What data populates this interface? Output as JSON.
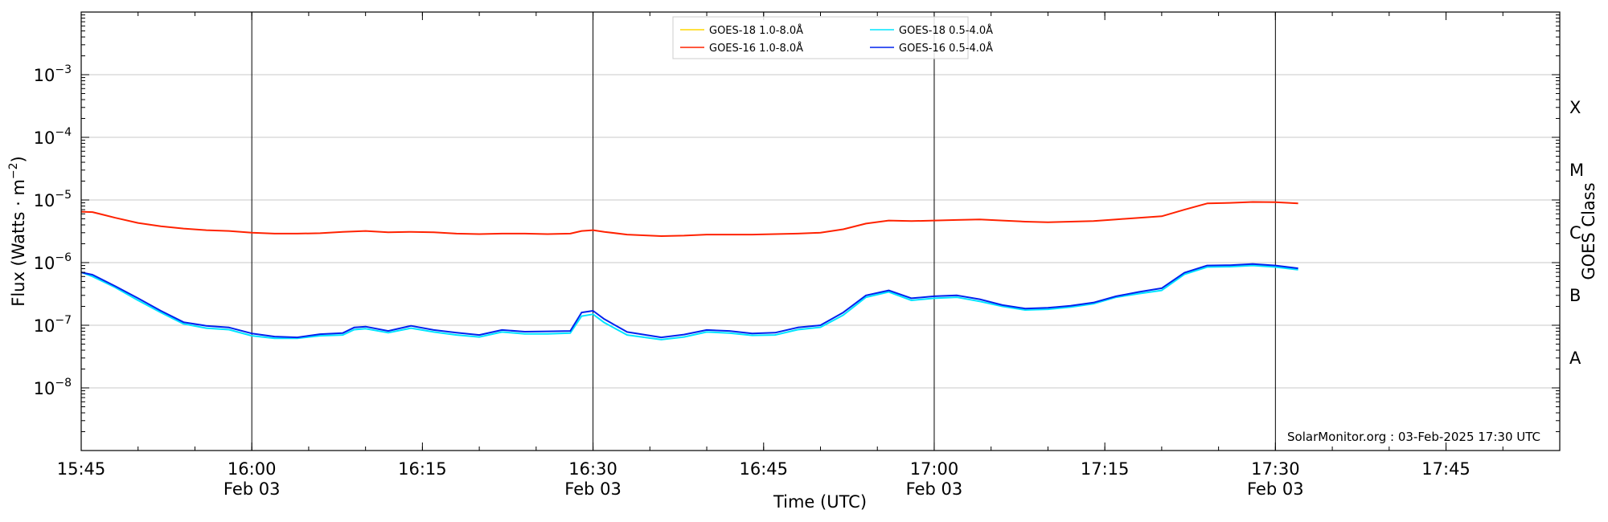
{
  "chart_data": {
    "type": "line",
    "xlabel": "Time (UTC)",
    "ylabel": "Flux (Watts · m⁻²)",
    "right_label": "GOES Class",
    "credit": "SolarMonitor.org : 03-Feb-2025 17:30 UTC",
    "x_range": [
      "15:45",
      "17:55"
    ],
    "y_scale": "log",
    "ylim": [
      1e-09,
      0.01
    ],
    "grid": "y",
    "legend_position": "top-center",
    "x_ticks": [
      {
        "t": "15:45",
        "label": "15:45",
        "date": ""
      },
      {
        "t": "16:00",
        "label": "16:00",
        "date": "Feb 03"
      },
      {
        "t": "16:15",
        "label": "16:15",
        "date": ""
      },
      {
        "t": "16:30",
        "label": "16:30",
        "date": "Feb 03"
      },
      {
        "t": "16:45",
        "label": "16:45",
        "date": ""
      },
      {
        "t": "17:00",
        "label": "17:00",
        "date": "Feb 03"
      },
      {
        "t": "17:15",
        "label": "17:15",
        "date": ""
      },
      {
        "t": "17:30",
        "label": "17:30",
        "date": "Feb 03"
      },
      {
        "t": "17:45",
        "label": "17:45",
        "date": ""
      }
    ],
    "vertical_lines": [
      "16:00",
      "16:30",
      "17:00",
      "17:30"
    ],
    "y_ticks": [
      {
        "value": 1e-08,
        "mant": "10",
        "exp": "−8"
      },
      {
        "value": 1e-07,
        "mant": "10",
        "exp": "−7"
      },
      {
        "value": 1e-06,
        "mant": "10",
        "exp": "−6"
      },
      {
        "value": 1e-05,
        "mant": "10",
        "exp": "−5"
      },
      {
        "value": 0.0001,
        "mant": "10",
        "exp": "−4"
      },
      {
        "value": 0.001,
        "mant": "10",
        "exp": "−3"
      }
    ],
    "goes_classes": [
      {
        "label": "A",
        "value": 3e-08
      },
      {
        "label": "B",
        "value": 3e-07
      },
      {
        "label": "C",
        "value": 3e-06
      },
      {
        "label": "M",
        "value": 3e-05
      },
      {
        "label": "X",
        "value": 0.0003
      }
    ],
    "series": [
      {
        "name": "GOES-18 1.0-8.0Å",
        "color": "#ffd700",
        "draw": false,
        "points": []
      },
      {
        "name": "GOES-18 0.5-4.0Å",
        "color": "#00e5ff",
        "draw": true,
        "points": [
          [
            "15:45",
            7e-07
          ],
          [
            "15:46",
            6e-07
          ],
          [
            "15:48",
            4e-07
          ],
          [
            "15:50",
            2.5e-07
          ],
          [
            "15:52",
            1.6e-07
          ],
          [
            "15:54",
            1.05e-07
          ],
          [
            "15:56",
            9e-08
          ],
          [
            "15:58",
            8.5e-08
          ],
          [
            "16:00",
            6.8e-08
          ],
          [
            "16:02",
            6.2e-08
          ],
          [
            "16:04",
            6.2e-08
          ],
          [
            "16:06",
            6.8e-08
          ],
          [
            "16:08",
            7e-08
          ],
          [
            "16:09",
            8.5e-08
          ],
          [
            "16:10",
            8.8e-08
          ],
          [
            "16:12",
            7.6e-08
          ],
          [
            "16:14",
            9e-08
          ],
          [
            "16:16",
            7.8e-08
          ],
          [
            "16:18",
            7e-08
          ],
          [
            "16:20",
            6.5e-08
          ],
          [
            "16:22",
            7.8e-08
          ],
          [
            "16:24",
            7.3e-08
          ],
          [
            "16:26",
            7.3e-08
          ],
          [
            "16:28",
            7.5e-08
          ],
          [
            "16:29",
            1.4e-07
          ],
          [
            "16:30",
            1.5e-07
          ],
          [
            "16:31",
            1.1e-07
          ],
          [
            "16:33",
            7e-08
          ],
          [
            "16:36",
            5.9e-08
          ],
          [
            "16:38",
            6.5e-08
          ],
          [
            "16:40",
            7.8e-08
          ],
          [
            "16:42",
            7.5e-08
          ],
          [
            "16:44",
            6.9e-08
          ],
          [
            "16:46",
            7e-08
          ],
          [
            "16:48",
            8.5e-08
          ],
          [
            "16:50",
            9.3e-08
          ],
          [
            "16:52",
            1.45e-07
          ],
          [
            "16:54",
            2.8e-07
          ],
          [
            "16:56",
            3.4e-07
          ],
          [
            "16:58",
            2.5e-07
          ],
          [
            "17:00",
            2.7e-07
          ],
          [
            "17:02",
            2.8e-07
          ],
          [
            "17:04",
            2.4e-07
          ],
          [
            "17:06",
            2e-07
          ],
          [
            "17:08",
            1.75e-07
          ],
          [
            "17:10",
            1.8e-07
          ],
          [
            "17:12",
            1.95e-07
          ],
          [
            "17:14",
            2.2e-07
          ],
          [
            "17:16",
            2.8e-07
          ],
          [
            "17:18",
            3.2e-07
          ],
          [
            "17:20",
            3.6e-07
          ],
          [
            "17:22",
            6.5e-07
          ],
          [
            "17:24",
            8.5e-07
          ],
          [
            "17:26",
            8.6e-07
          ],
          [
            "17:28",
            9e-07
          ],
          [
            "17:30",
            8.5e-07
          ],
          [
            "17:32",
            7.7e-07
          ]
        ]
      },
      {
        "name": "GOES-16 1.0-8.0Å",
        "color": "#ff2200",
        "draw": true,
        "points": [
          [
            "15:45",
            6.5e-06
          ],
          [
            "15:46",
            6.4e-06
          ],
          [
            "15:48",
            5.2e-06
          ],
          [
            "15:50",
            4.3e-06
          ],
          [
            "15:52",
            3.8e-06
          ],
          [
            "15:54",
            3.5e-06
          ],
          [
            "15:56",
            3.3e-06
          ],
          [
            "15:58",
            3.2e-06
          ],
          [
            "16:00",
            3e-06
          ],
          [
            "16:02",
            2.9e-06
          ],
          [
            "16:04",
            2.9e-06
          ],
          [
            "16:06",
            2.95e-06
          ],
          [
            "16:08",
            3.1e-06
          ],
          [
            "16:10",
            3.2e-06
          ],
          [
            "16:12",
            3.05e-06
          ],
          [
            "16:14",
            3.1e-06
          ],
          [
            "16:16",
            3.05e-06
          ],
          [
            "16:18",
            2.9e-06
          ],
          [
            "16:20",
            2.85e-06
          ],
          [
            "16:22",
            2.9e-06
          ],
          [
            "16:24",
            2.9e-06
          ],
          [
            "16:26",
            2.85e-06
          ],
          [
            "16:28",
            2.9e-06
          ],
          [
            "16:29",
            3.2e-06
          ],
          [
            "16:30",
            3.3e-06
          ],
          [
            "16:31",
            3.1e-06
          ],
          [
            "16:33",
            2.8e-06
          ],
          [
            "16:36",
            2.65e-06
          ],
          [
            "16:38",
            2.7e-06
          ],
          [
            "16:40",
            2.8e-06
          ],
          [
            "16:42",
            2.8e-06
          ],
          [
            "16:44",
            2.8e-06
          ],
          [
            "16:46",
            2.85e-06
          ],
          [
            "16:48",
            2.9e-06
          ],
          [
            "16:50",
            3e-06
          ],
          [
            "16:52",
            3.4e-06
          ],
          [
            "16:54",
            4.2e-06
          ],
          [
            "16:56",
            4.7e-06
          ],
          [
            "16:58",
            4.6e-06
          ],
          [
            "17:00",
            4.7e-06
          ],
          [
            "17:02",
            4.8e-06
          ],
          [
            "17:04",
            4.9e-06
          ],
          [
            "17:06",
            4.7e-06
          ],
          [
            "17:08",
            4.5e-06
          ],
          [
            "17:10",
            4.4e-06
          ],
          [
            "17:12",
            4.5e-06
          ],
          [
            "17:14",
            4.6e-06
          ],
          [
            "17:16",
            4.9e-06
          ],
          [
            "17:18",
            5.2e-06
          ],
          [
            "17:20",
            5.5e-06
          ],
          [
            "17:22",
            7e-06
          ],
          [
            "17:24",
            8.8e-06
          ],
          [
            "17:26",
            9e-06
          ],
          [
            "17:28",
            9.3e-06
          ],
          [
            "17:30",
            9.2e-06
          ],
          [
            "17:32",
            8.8e-06
          ]
        ]
      },
      {
        "name": "GOES-16 0.5-4.0Å",
        "color": "#0022ee",
        "draw": true,
        "points": [
          [
            "15:45",
            7e-07
          ],
          [
            "15:46",
            6.4e-07
          ],
          [
            "15:48",
            4.2e-07
          ],
          [
            "15:50",
            2.7e-07
          ],
          [
            "15:52",
            1.7e-07
          ],
          [
            "15:54",
            1.12e-07
          ],
          [
            "15:56",
            9.8e-08
          ],
          [
            "15:58",
            9.2e-08
          ],
          [
            "16:00",
            7.4e-08
          ],
          [
            "16:02",
            6.6e-08
          ],
          [
            "16:04",
            6.4e-08
          ],
          [
            "16:06",
            7.2e-08
          ],
          [
            "16:08",
            7.5e-08
          ],
          [
            "16:09",
            9.2e-08
          ],
          [
            "16:10",
            9.5e-08
          ],
          [
            "16:12",
            8.1e-08
          ],
          [
            "16:14",
            9.8e-08
          ],
          [
            "16:16",
            8.4e-08
          ],
          [
            "16:18",
            7.6e-08
          ],
          [
            "16:20",
            7e-08
          ],
          [
            "16:22",
            8.4e-08
          ],
          [
            "16:24",
            7.9e-08
          ],
          [
            "16:26",
            8e-08
          ],
          [
            "16:28",
            8.1e-08
          ],
          [
            "16:29",
            1.6e-07
          ],
          [
            "16:30",
            1.7e-07
          ],
          [
            "16:31",
            1.25e-07
          ],
          [
            "16:33",
            7.8e-08
          ],
          [
            "16:36",
            6.4e-08
          ],
          [
            "16:38",
            7.1e-08
          ],
          [
            "16:40",
            8.4e-08
          ],
          [
            "16:42",
            8.1e-08
          ],
          [
            "16:44",
            7.4e-08
          ],
          [
            "16:46",
            7.6e-08
          ],
          [
            "16:48",
            9.2e-08
          ],
          [
            "16:50",
            1e-07
          ],
          [
            "16:52",
            1.6e-07
          ],
          [
            "16:54",
            3e-07
          ],
          [
            "16:56",
            3.6e-07
          ],
          [
            "16:58",
            2.7e-07
          ],
          [
            "17:00",
            2.9e-07
          ],
          [
            "17:02",
            3e-07
          ],
          [
            "17:04",
            2.6e-07
          ],
          [
            "17:06",
            2.1e-07
          ],
          [
            "17:08",
            1.85e-07
          ],
          [
            "17:10",
            1.9e-07
          ],
          [
            "17:12",
            2.05e-07
          ],
          [
            "17:14",
            2.3e-07
          ],
          [
            "17:16",
            2.9e-07
          ],
          [
            "17:18",
            3.4e-07
          ],
          [
            "17:20",
            3.9e-07
          ],
          [
            "17:22",
            6.9e-07
          ],
          [
            "17:24",
            9e-07
          ],
          [
            "17:26",
            9.1e-07
          ],
          [
            "17:28",
            9.5e-07
          ],
          [
            "17:30",
            9e-07
          ],
          [
            "17:32",
            8.1e-07
          ]
        ]
      }
    ]
  }
}
